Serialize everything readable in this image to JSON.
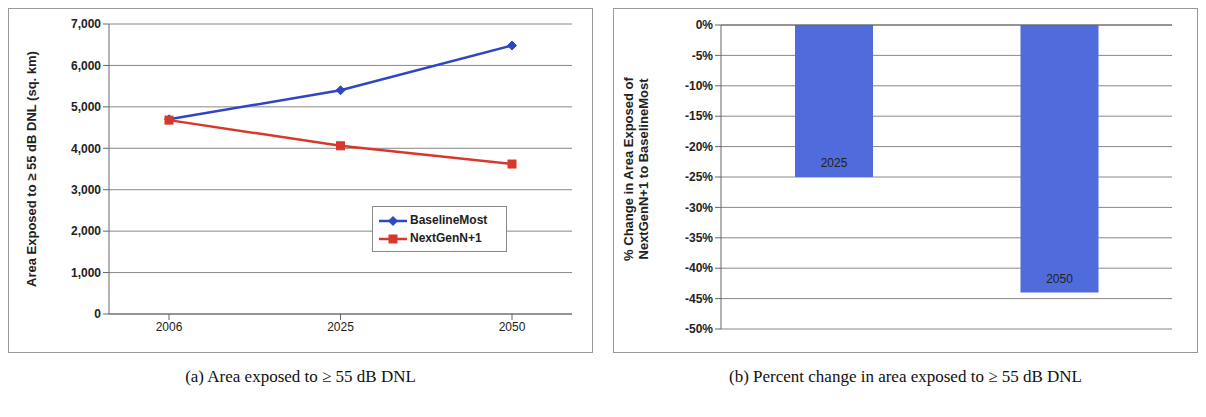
{
  "chart_data": [
    {
      "type": "line",
      "title": "(a) Area exposed to ≥ 55 dB DNL",
      "ylabel": "Area Exposed to ≥ 55 dB DNL (sq. km)",
      "categories": [
        "2006",
        "2025",
        "2050"
      ],
      "series": [
        {
          "name": "BaselineMost",
          "color": "#2f46c4",
          "marker": "diamond",
          "values": [
            4700,
            5400,
            6480
          ]
        },
        {
          "name": "NextGenN+1",
          "color": "#d8382c",
          "marker": "square",
          "values": [
            4680,
            4060,
            3620
          ]
        }
      ],
      "ylim": [
        0,
        7000
      ],
      "yticks": [
        0,
        {
          "value": 1000,
          "label": "1,000"
        },
        {
          "value": 2000,
          "label": "2,000"
        },
        {
          "value": 3000,
          "label": "3,000"
        },
        {
          "value": 4000,
          "label": "4,000"
        },
        {
          "value": 5000,
          "label": "5,000"
        },
        {
          "value": 6000,
          "label": "6,000"
        },
        {
          "value": 7000,
          "label": "7,000"
        }
      ],
      "grid": true,
      "legend": "lower right"
    },
    {
      "type": "bar",
      "title": "(b) Percent change in area exposed to ≥ 55 dB DNL",
      "ylabel": "% Change in Area Exposed of NextGenN+1 to BaselineMost",
      "categories": [
        "2025",
        "2050"
      ],
      "values": [
        -25,
        -44
      ],
      "color": "#4f6bdc",
      "ylim": [
        -50,
        0
      ],
      "yticks": [
        {
          "value": 0,
          "label": "0%"
        },
        {
          "value": -5,
          "label": "-5%"
        },
        {
          "value": -10,
          "label": "-10%"
        },
        {
          "value": -15,
          "label": "-15%"
        },
        {
          "value": -20,
          "label": "-20%"
        },
        {
          "value": -25,
          "label": "-25%"
        },
        {
          "value": -30,
          "label": "-30%"
        },
        {
          "value": -35,
          "label": "-35%"
        },
        {
          "value": -40,
          "label": "-40%"
        },
        {
          "value": -45,
          "label": "-45%"
        },
        {
          "value": -50,
          "label": "-50%"
        }
      ],
      "grid": true,
      "tick_labels": "y"
    }
  ]
}
